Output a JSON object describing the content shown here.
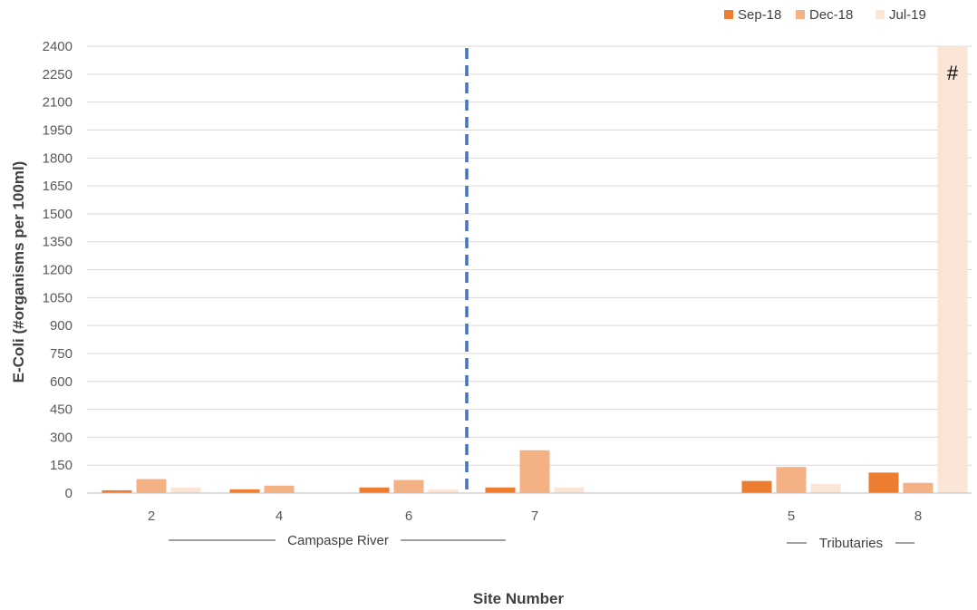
{
  "chart_data": {
    "type": "bar",
    "title": "",
    "xlabel": "Site Number",
    "ylabel": "E-Coli (#organisms per 100ml)",
    "ylim": [
      0,
      2400
    ],
    "yticks": [
      0,
      150,
      300,
      450,
      600,
      750,
      900,
      1050,
      1200,
      1350,
      1500,
      1650,
      1800,
      1950,
      2100,
      2250,
      2400
    ],
    "grid": true,
    "legend_position": "top-right",
    "categories": [
      "2",
      "4",
      "6",
      "7",
      "5",
      "8"
    ],
    "series": [
      {
        "name": "Sep-18",
        "color": "#ED7D31",
        "values": [
          15,
          20,
          30,
          30,
          65,
          110
        ]
      },
      {
        "name": "Dec-18",
        "color": "#F4B183",
        "values": [
          75,
          40,
          70,
          230,
          140,
          55
        ]
      },
      {
        "name": "Jul-19",
        "color": "#FBE5D6",
        "values": [
          30,
          0,
          20,
          30,
          50,
          2400
        ]
      }
    ],
    "groups": [
      {
        "label": "Campaspe River",
        "categories": [
          "2",
          "4",
          "6",
          "7"
        ]
      },
      {
        "label": "Tributaries",
        "categories": [
          "5",
          "8"
        ]
      }
    ],
    "annotations": [
      {
        "text": "#",
        "category": "8",
        "series": "Jul-19"
      }
    ],
    "divider": {
      "style": "dashed",
      "color": "#4472C4",
      "between": [
        "6",
        "7"
      ]
    }
  }
}
